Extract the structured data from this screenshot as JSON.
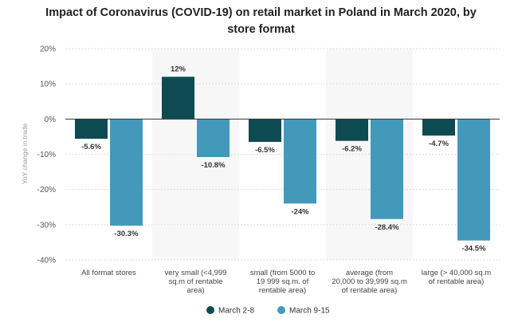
{
  "chart_data": {
    "type": "bar",
    "title_lines": [
      "Impact of Coronavirus (COVID-19) on retail market in Poland in March 2020, by",
      "store format"
    ],
    "ylabel": "YoY change in trade",
    "xlabel": "",
    "ylim": [
      -40,
      20
    ],
    "yticks": [
      20,
      10,
      0,
      -10,
      -20,
      -30,
      -40
    ],
    "ytick_labels": [
      "20%",
      "10%",
      "0%",
      "-10%",
      "-20%",
      "-30%",
      "-40%"
    ],
    "categories": [
      [
        "All format stores"
      ],
      [
        "very small (<4,999",
        "sq.m of rentable",
        "area)"
      ],
      [
        "small (from 5000 to",
        "19 999 sq.m. of",
        "rentable area)"
      ],
      [
        "average (from",
        "20,000 to 39,999 sq.m",
        "of rentable area)"
      ],
      [
        "large (> 40,000 sq.m",
        "of rentable area)"
      ]
    ],
    "series": [
      {
        "name": "March 2-8",
        "color": "#0e4a52",
        "values": [
          -5.6,
          12,
          -6.5,
          -6.2,
          -4.7
        ],
        "labels": [
          "-5.6%",
          "12%",
          "-6.5%",
          "-6.2%",
          "-4.7%"
        ]
      },
      {
        "name": "March 9-15",
        "color": "#4399ba",
        "values": [
          -30.3,
          -10.8,
          -24,
          -28.4,
          -34.5
        ],
        "labels": [
          "-30.3%",
          "-10.8%",
          "-24%",
          "-28.4%",
          "-34.5%"
        ]
      }
    ],
    "grid": true,
    "legend": "bottom-center",
    "colors": {
      "grid": "#dcdcdc",
      "band": "#f7f7f7",
      "zero": "#333333"
    }
  }
}
